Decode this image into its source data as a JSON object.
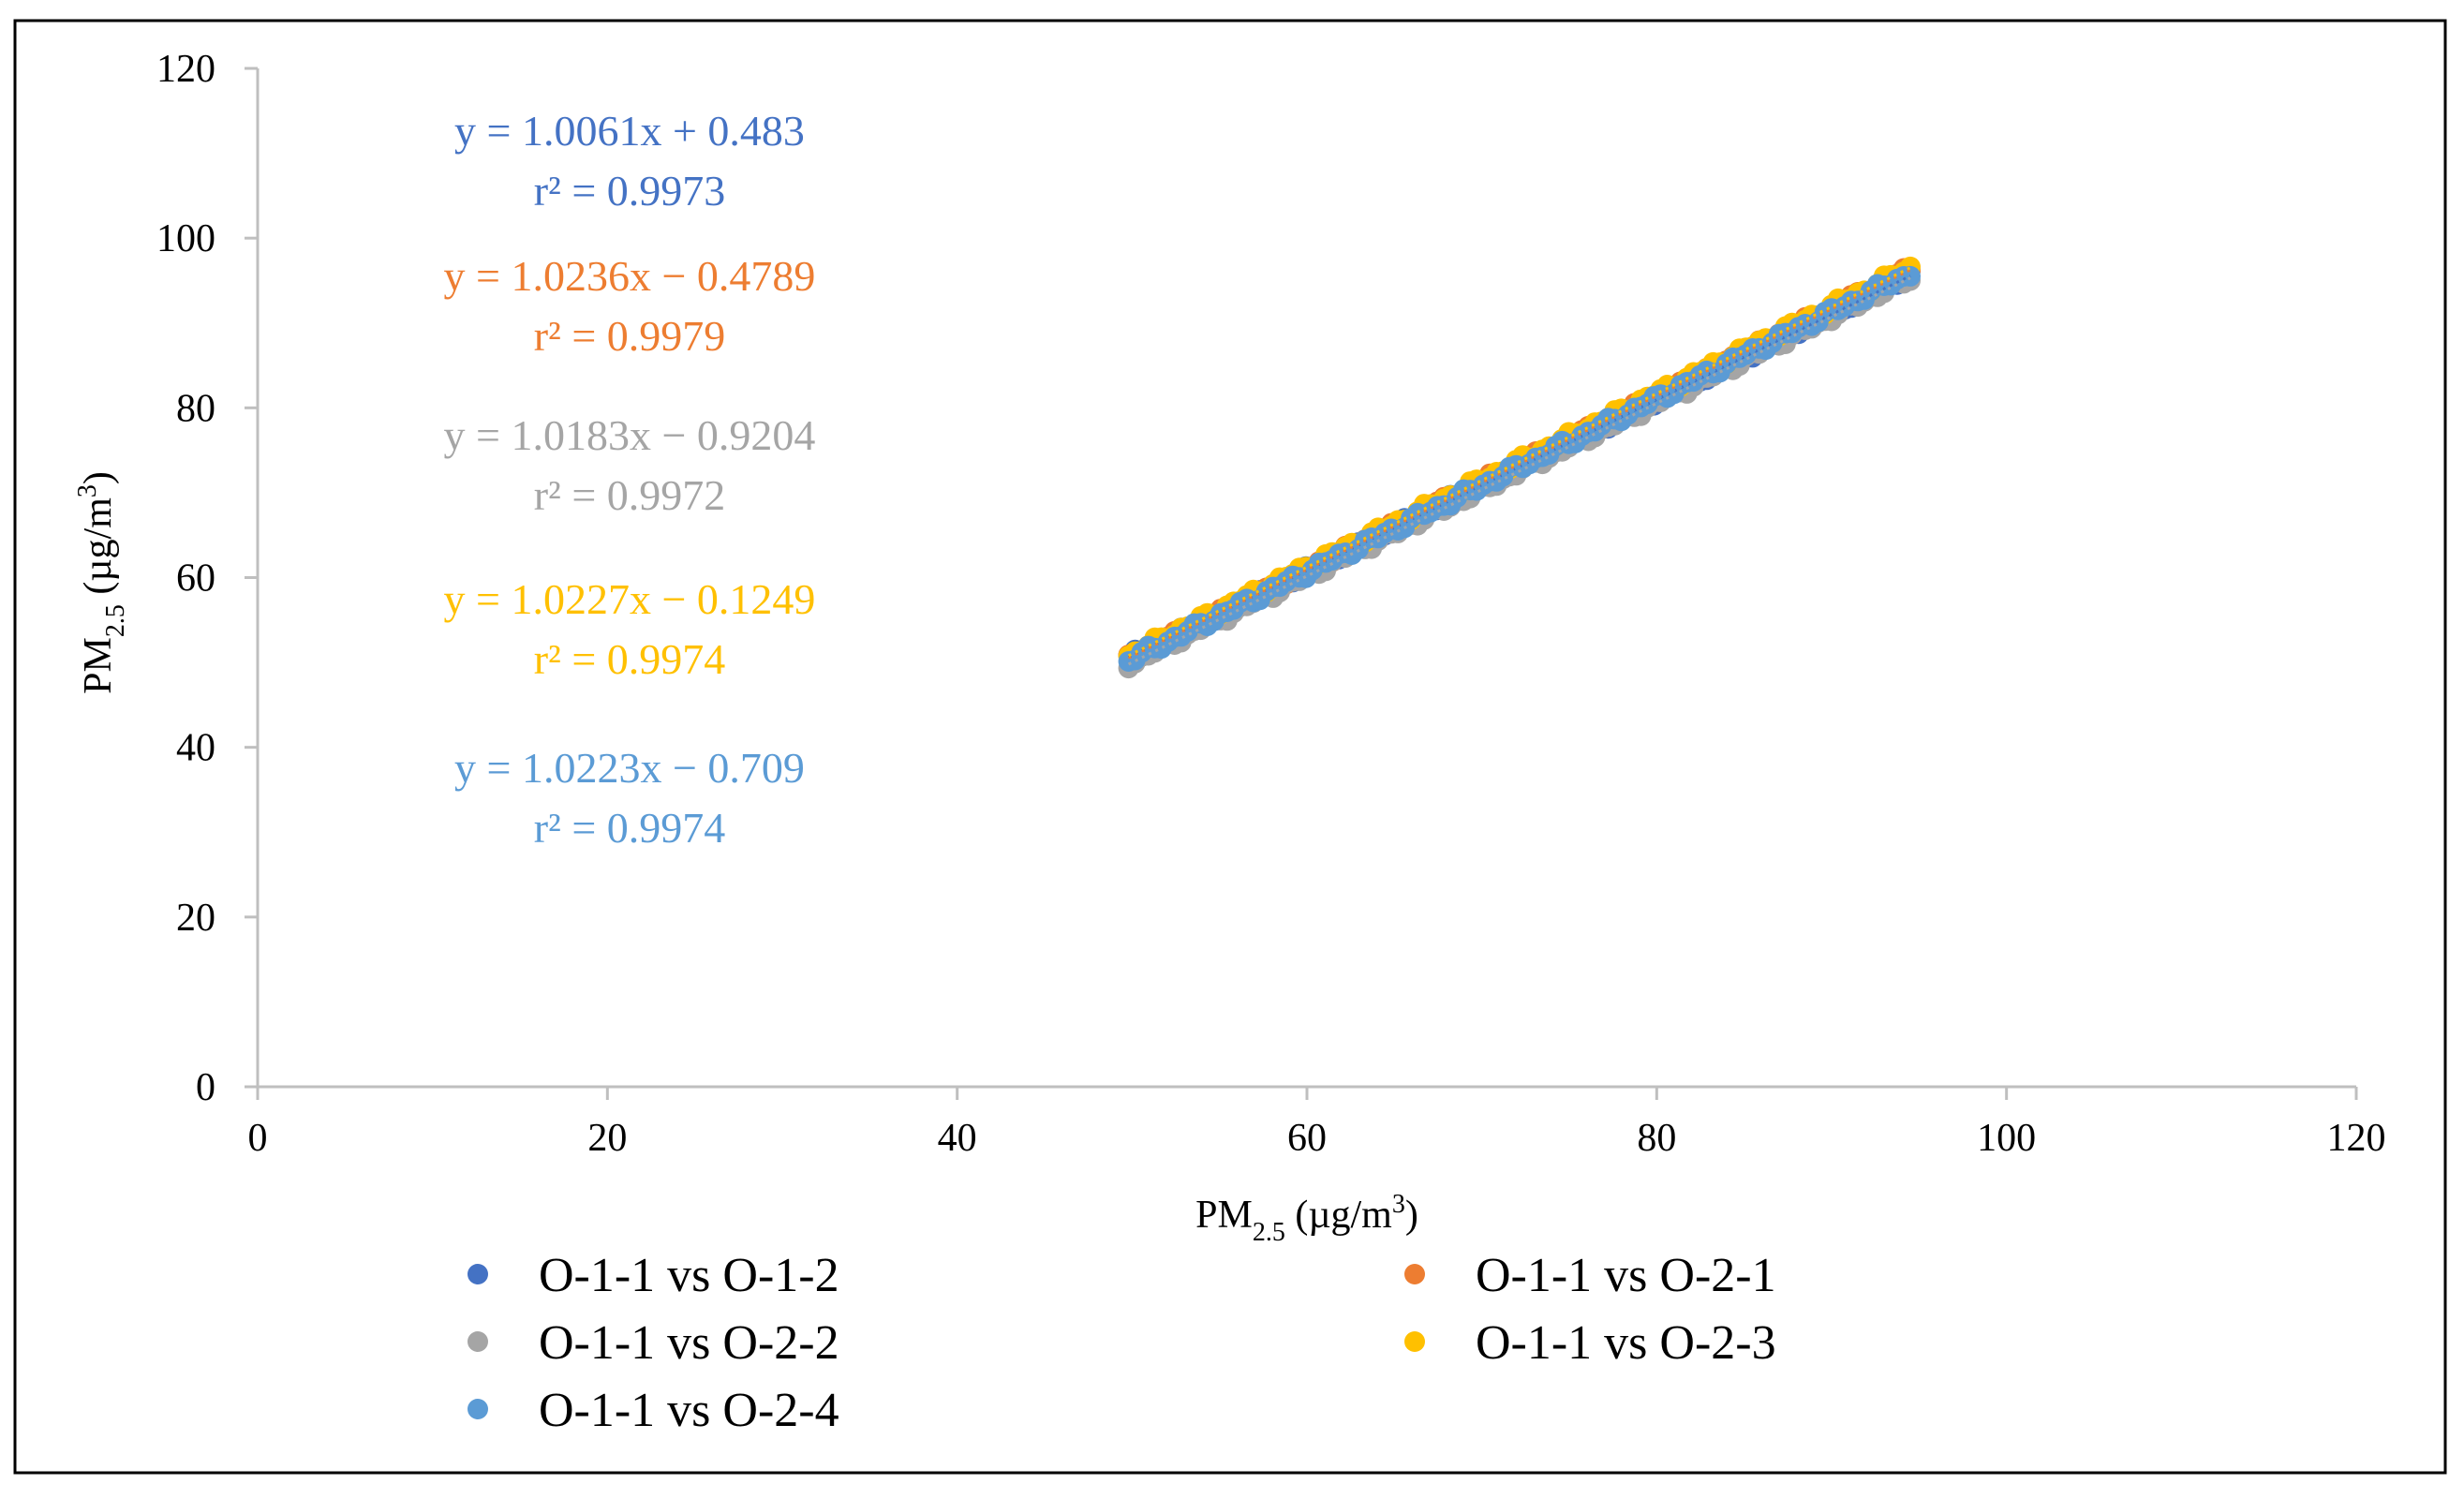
{
  "chart_data": {
    "type": "scatter",
    "title": "",
    "xlabel": {
      "main": "PM",
      "sub": "2.5",
      "unit_open": " (µg/m",
      "sup": "3",
      "unit_close": ")"
    },
    "ylabel": {
      "main": "PM",
      "sub": "2.5",
      "unit_open": " (µg/m",
      "sup": "3",
      "unit_close": ")"
    },
    "xlim": [
      0,
      120
    ],
    "ylim": [
      0,
      120
    ],
    "xticks": [
      0,
      20,
      40,
      60,
      80,
      100,
      120
    ],
    "yticks": [
      0,
      20,
      40,
      60,
      80,
      100,
      120
    ],
    "x_range_data": [
      49.8,
      94.5
    ],
    "grid": false,
    "legend_position": "bottom",
    "series": [
      {
        "name": "O-1-1 vs O-1-2",
        "color": "#4472C4",
        "slope": 1.0061,
        "intercept": 0.483,
        "equation": "y = 1.0061x + 0.483",
        "r2": "r² = 0.9973"
      },
      {
        "name": "O-1-1 vs O-2-1",
        "color": "#ED7D31",
        "slope": 1.0236,
        "intercept": -0.4789,
        "equation": "y = 1.0236x − 0.4789",
        "r2": "r² = 0.9979"
      },
      {
        "name": "O-1-1 vs O-2-2",
        "color": "#A5A5A5",
        "slope": 1.0183,
        "intercept": -0.9204,
        "equation": "y = 1.0183x − 0.9204",
        "r2": "r² = 0.9972"
      },
      {
        "name": "O-1-1 vs O-2-3",
        "color": "#FFC000",
        "slope": 1.0227,
        "intercept": -0.1249,
        "equation": "y = 1.0227x − 0.1249",
        "r2": "r² = 0.9974"
      },
      {
        "name": "O-1-1 vs O-2-4",
        "color": "#5B9BD5",
        "slope": 1.0223,
        "intercept": -0.709,
        "equation": "y = 1.0223x − 0.709",
        "r2": "r² = 0.9974"
      }
    ]
  }
}
